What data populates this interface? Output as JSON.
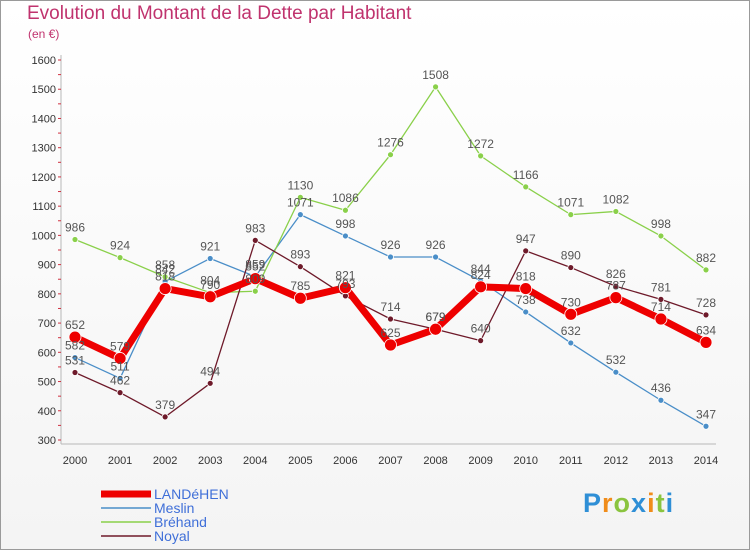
{
  "title": "Evolution du Montant de la Dette par Habitant",
  "unit": "(en €)",
  "logo": {
    "p": "P",
    "r": "r",
    "o": "o",
    "x": "x",
    "i": "i",
    "t": "t",
    "i2": "i"
  },
  "chart_data": {
    "type": "line",
    "title": "Evolution du Montant de la Dette par Habitant",
    "ylabel": "(en €)",
    "xlabel": "",
    "ylim": [
      300,
      1600
    ],
    "yticks": [
      300,
      400,
      500,
      600,
      700,
      800,
      900,
      1000,
      1100,
      1200,
      1300,
      1400,
      1500,
      1600
    ],
    "grid": false,
    "legend": "bottom-left",
    "x": [
      "2000",
      "2001",
      "2002",
      "2003",
      "2004",
      "2005",
      "2006",
      "2007",
      "2008",
      "2009",
      "2010",
      "2011",
      "2012",
      "2013",
      "2014"
    ],
    "series": [
      {
        "name": "Meslin",
        "color": "#4a8ec8",
        "values": [
          582,
          511,
          842,
          921,
          859,
          1071,
          998,
          926,
          926,
          844,
          738,
          632,
          532,
          436,
          347
        ]
      },
      {
        "name": "Bréhand",
        "color": "#8ad04a",
        "values": [
          986,
          924,
          858,
          804,
          809,
          1130,
          1086,
          1276,
          1508,
          1272,
          1166,
          1071,
          1082,
          998,
          882
        ]
      },
      {
        "name": "Noyal",
        "color": "#6e1a2a",
        "values": [
          531,
          462,
          379,
          494,
          983,
          893,
          793,
          714,
          679,
          640,
          947,
          890,
          826,
          781,
          728
        ]
      },
      {
        "name": "LANDéHEN",
        "color": "#ee0000",
        "values": [
          652,
          579,
          818,
          790,
          852,
          785,
          821,
          625,
          679,
          824,
          818,
          730,
          787,
          714,
          634
        ]
      }
    ],
    "legend_order": [
      "LANDéHEN",
      "Meslin",
      "Bréhand",
      "Noyal"
    ]
  }
}
